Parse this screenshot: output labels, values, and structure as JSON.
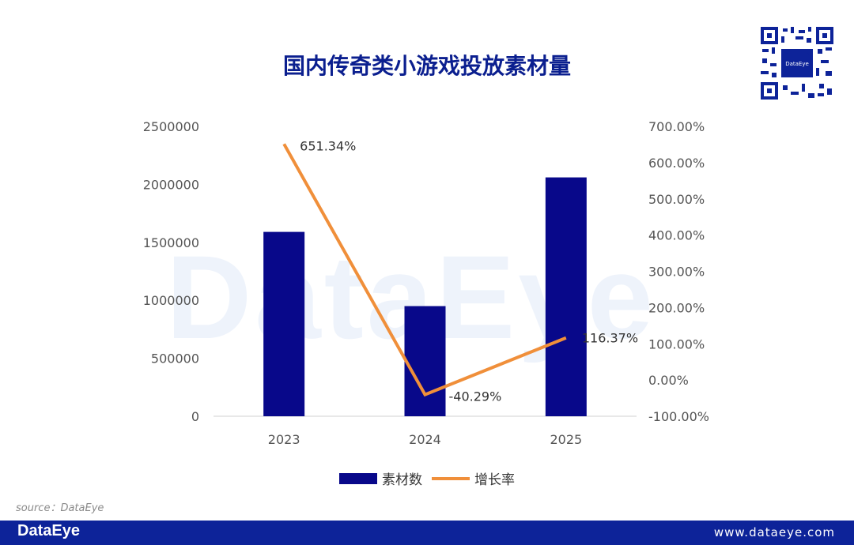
{
  "title": "国内传奇类小游戏投放素材量",
  "watermark": "DataEye",
  "source": "source：DataEye",
  "footer": {
    "logo": "DataEye",
    "url": "www.dataeye.com"
  },
  "qr_label": "DataEye",
  "colors": {
    "bar": "#08088a",
    "line": "#f08f3a",
    "brand": "#0d2399",
    "title": "#0b1f8f"
  },
  "chart_data": {
    "type": "bar",
    "categories": [
      "2023",
      "2024",
      "2025"
    ],
    "series": [
      {
        "name": "素材数",
        "type": "bar",
        "axis": "left",
        "values": [
          1590000,
          950000,
          2060000
        ]
      },
      {
        "name": "增长率",
        "type": "line",
        "axis": "right",
        "values": [
          651.34,
          -40.29,
          116.37
        ],
        "labels": [
          "651.34%",
          "-40.29%",
          "116.37%"
        ]
      }
    ],
    "y_left": {
      "min": 0,
      "max": 2500000,
      "ticks": [
        "0",
        "500000",
        "1000000",
        "1500000",
        "2000000",
        "2500000"
      ]
    },
    "y_right": {
      "min": -100,
      "max": 700,
      "ticks": [
        "-100.00%",
        "0.00%",
        "100.00%",
        "200.00%",
        "300.00%",
        "400.00%",
        "500.00%",
        "600.00%",
        "700.00%"
      ]
    },
    "legend": "bottom"
  }
}
